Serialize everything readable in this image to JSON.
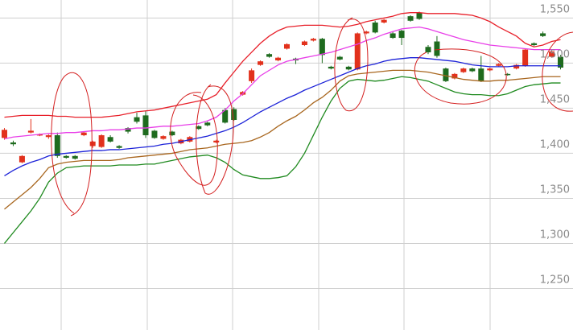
{
  "chart_data": {
    "type": "candlestick",
    "categories": [
      null,
      null,
      null,
      null,
      null,
      null,
      null,
      null,
      null,
      null,
      null,
      null,
      null,
      null,
      null,
      null,
      null,
      null,
      null,
      null,
      null,
      null,
      null,
      null,
      null,
      null,
      null,
      null,
      null,
      null,
      null,
      null,
      null,
      null,
      null,
      null,
      null,
      null,
      null,
      null,
      null,
      null,
      null,
      null,
      null,
      null,
      null,
      null,
      null,
      null,
      null,
      null,
      null,
      null,
      null,
      null,
      null,
      null,
      null,
      null,
      null,
      null,
      null,
      null
    ],
    "open": [
      1417,
      1412,
      1390,
      1423,
      1420,
      1418,
      1420,
      1397,
      1397,
      1420,
      1408,
      1407,
      1418,
      1408,
      1428,
      1440,
      1442,
      1425,
      1416,
      1424,
      1411,
      1413,
      1430,
      1434,
      1412,
      1448,
      1449,
      1465,
      1480,
      1498,
      1510,
      1503,
      1516,
      1505,
      1520,
      1525,
      1527,
      1496,
      1507,
      1496,
      1493,
      1533,
      1545,
      1545,
      1533,
      1536,
      1552,
      1556,
      1518,
      1524,
      1494,
      1483,
      1490,
      1494,
      1494,
      1492,
      1497,
      1488,
      1494,
      1497,
      1522,
      1533,
      1507,
      1507
    ],
    "high": [
      1428,
      1414,
      1398,
      1438,
      1422,
      1421,
      1423,
      1398,
      1398,
      1424,
      1414,
      1421,
      1420,
      1409,
      1429,
      1445,
      1447,
      1426,
      1420,
      1425,
      1416,
      1419,
      1431,
      1435,
      1415,
      1450,
      1451,
      1469,
      1494,
      1503,
      1511,
      1507,
      1522,
      1506,
      1525,
      1528,
      1528,
      1497,
      1508,
      1497,
      1534,
      1536,
      1547,
      1549,
      1535,
      1537,
      1553,
      1557,
      1520,
      1530,
      1495,
      1489,
      1495,
      1495,
      1508,
      1495,
      1500,
      1489,
      1499,
      1516,
      1523,
      1535,
      1514,
      1509
    ],
    "low": [
      1415,
      1408,
      1389,
      1422,
      1419,
      1416,
      1395,
      1394,
      1393,
      1419,
      1406,
      1406,
      1412,
      1405,
      1422,
      1433,
      1417,
      1416,
      1415,
      1419,
      1410,
      1412,
      1426,
      1430,
      1411,
      1433,
      1436,
      1464,
      1478,
      1497,
      1506,
      1502,
      1515,
      1499,
      1519,
      1524,
      1500,
      1493,
      1503,
      1492,
      1492,
      1532,
      1533,
      1544,
      1527,
      1520,
      1546,
      1548,
      1510,
      1506,
      1479,
      1482,
      1489,
      1490,
      1479,
      1491,
      1496,
      1486,
      1493,
      1496,
      1519,
      1529,
      1506,
      1493
    ],
    "close": [
      1426,
      1410,
      1397,
      1425,
      1421,
      1420,
      1397,
      1395,
      1394,
      1423,
      1413,
      1420,
      1413,
      1406,
      1424,
      1435,
      1420,
      1417,
      1419,
      1420,
      1415,
      1418,
      1427,
      1431,
      1414,
      1434,
      1437,
      1468,
      1492,
      1502,
      1507,
      1506,
      1521,
      1503,
      1524,
      1527,
      1509,
      1494,
      1504,
      1493,
      1533,
      1535,
      1534,
      1548,
      1528,
      1528,
      1547,
      1549,
      1512,
      1508,
      1480,
      1488,
      1494,
      1491,
      1480,
      1494,
      1499,
      1487,
      1498,
      1515,
      1520,
      1530,
      1513,
      1495
    ],
    "up_color": "#e2311c",
    "down_color": "#1e6b1e",
    "series": [
      {
        "color": "#e8202a",
        "values": [
          1440,
          1441,
          1442,
          1442,
          1442,
          1442,
          1441,
          1441,
          1440,
          1440,
          1440,
          1440,
          1441,
          1442,
          1444,
          1446,
          1447,
          1448,
          1450,
          1452,
          1454,
          1456,
          1458,
          1460,
          1465,
          1478,
          1490,
          1502,
          1512,
          1522,
          1530,
          1536,
          1540,
          1541,
          1542,
          1542,
          1542,
          1541,
          1540,
          1541,
          1543,
          1546,
          1548,
          1550,
          1552,
          1555,
          1556,
          1556,
          1555,
          1555,
          1555,
          1555,
          1554,
          1553,
          1550,
          1546,
          1540,
          1535,
          1530,
          1522,
          1518,
          1520,
          1524,
          1526
        ]
      },
      {
        "color": "#e83ee8",
        "values": [
          1416,
          1418,
          1419,
          1420,
          1421,
          1422,
          1422,
          1423,
          1423,
          1424,
          1425,
          1425,
          1426,
          1426,
          1427,
          1428,
          1428,
          1429,
          1430,
          1430,
          1431,
          1432,
          1433,
          1436,
          1440,
          1448,
          1458,
          1466,
          1476,
          1486,
          1492,
          1498,
          1502,
          1504,
          1506,
          1508,
          1510,
          1512,
          1515,
          1518,
          1521,
          1525,
          1528,
          1532,
          1535,
          1538,
          1539,
          1540,
          1538,
          1535,
          1532,
          1529,
          1526,
          1524,
          1522,
          1520,
          1519,
          1518,
          1517,
          1516,
          1515,
          1515,
          1515,
          1515
        ]
      },
      {
        "color": "#1c22d8",
        "values": [
          1375,
          1381,
          1386,
          1390,
          1393,
          1397,
          1399,
          1400,
          1401,
          1402,
          1403,
          1403,
          1404,
          1404,
          1405,
          1406,
          1407,
          1408,
          1410,
          1411,
          1413,
          1415,
          1417,
          1419,
          1422,
          1425,
          1429,
          1434,
          1440,
          1446,
          1451,
          1456,
          1461,
          1465,
          1470,
          1474,
          1478,
          1482,
          1486,
          1490,
          1494,
          1497,
          1499,
          1502,
          1504,
          1505,
          1506,
          1506,
          1505,
          1504,
          1503,
          1502,
          1500,
          1498,
          1497,
          1496,
          1496,
          1496,
          1497,
          1497,
          1497,
          1497,
          1497,
          1497
        ]
      },
      {
        "color": "#a8661e",
        "values": [
          1338,
          1346,
          1354,
          1362,
          1372,
          1384,
          1388,
          1390,
          1391,
          1392,
          1392,
          1392,
          1392,
          1393,
          1395,
          1396,
          1397,
          1398,
          1399,
          1400,
          1402,
          1404,
          1405,
          1406,
          1408,
          1410,
          1411,
          1412,
          1414,
          1418,
          1423,
          1430,
          1436,
          1441,
          1448,
          1456,
          1462,
          1470,
          1480,
          1486,
          1488,
          1489,
          1490,
          1491,
          1492,
          1492,
          1492,
          1491,
          1490,
          1488,
          1486,
          1484,
          1482,
          1481,
          1480,
          1480,
          1481,
          1481,
          1482,
          1483,
          1484,
          1485,
          1485,
          1485
        ]
      },
      {
        "color": "#1f8a1f",
        "values": [
          1300,
          1312,
          1324,
          1336,
          1350,
          1368,
          1378,
          1384,
          1385,
          1386,
          1386,
          1386,
          1386,
          1387,
          1387,
          1387,
          1388,
          1388,
          1390,
          1392,
          1394,
          1396,
          1397,
          1398,
          1395,
          1390,
          1382,
          1376,
          1374,
          1372,
          1372,
          1373,
          1375,
          1385,
          1400,
          1420,
          1440,
          1458,
          1472,
          1480,
          1482,
          1481,
          1480,
          1481,
          1483,
          1485,
          1484,
          1482,
          1480,
          1476,
          1472,
          1468,
          1466,
          1465,
          1465,
          1464,
          1464,
          1466,
          1470,
          1474,
          1476,
          1477,
          1478,
          1478
        ]
      }
    ],
    "ylim": [
      1204,
      1570
    ],
    "yticks": [
      {
        "value": 1250,
        "label": "1,250"
      },
      {
        "value": 1300,
        "label": "1,300"
      },
      {
        "value": 1350,
        "label": "1,350"
      },
      {
        "value": 1400,
        "label": "1,400"
      },
      {
        "value": 1450,
        "label": "1,450"
      },
      {
        "value": 1500,
        "label": "1,500"
      },
      {
        "value": 1550,
        "label": "1,550"
      }
    ],
    "grid": true
  }
}
